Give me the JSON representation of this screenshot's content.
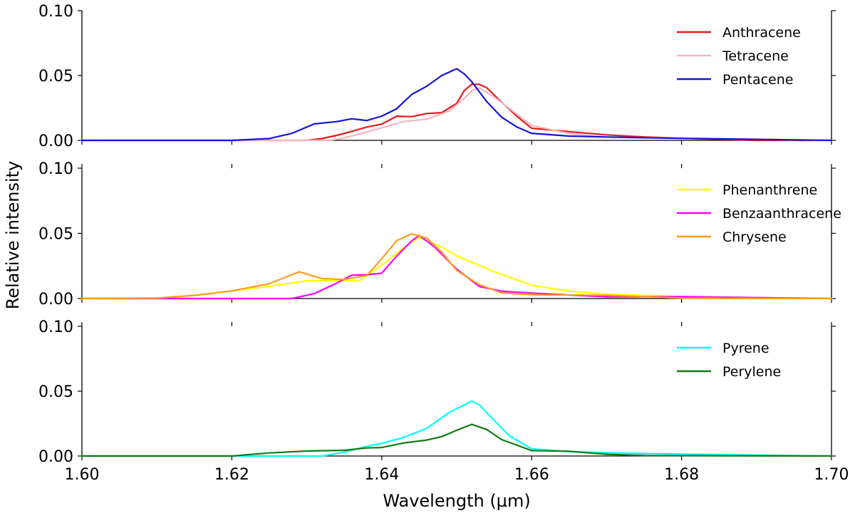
{
  "chart_data": {
    "type": "line",
    "xlabel": "Wavelength (μm)",
    "ylabel": "Relative intensity",
    "xlim": [
      1.6,
      1.7
    ],
    "x_ticks": [
      "1.60",
      "1.62",
      "1.64",
      "1.66",
      "1.68",
      "1.70"
    ],
    "x_tick_values": [
      1.6,
      1.62,
      1.64,
      1.66,
      1.68,
      1.7
    ],
    "panels": [
      {
        "ylim": [
          0,
          0.1
        ],
        "y_ticks": [
          "0.00",
          "0.05",
          "0.10"
        ],
        "y_tick_values": [
          0,
          0.05,
          0.1
        ],
        "legend_position": "top-right",
        "series": [
          {
            "name": "Anthracene",
            "color": "#e41a1c",
            "x": [
              1.6,
              1.63,
              1.632,
              1.634,
              1.636,
              1.638,
              1.64,
              1.642,
              1.644,
              1.646,
              1.648,
              1.65,
              1.651,
              1.652,
              1.653,
              1.654,
              1.656,
              1.658,
              1.66,
              1.665,
              1.67,
              1.675,
              1.68,
              1.69,
              1.7
            ],
            "y": [
              0,
              0,
              0.001,
              0.004,
              0.007,
              0.01,
              0.013,
              0.018,
              0.019,
              0.02,
              0.022,
              0.028,
              0.038,
              0.044,
              0.043,
              0.04,
              0.03,
              0.018,
              0.01,
              0.007,
              0.004,
              0.002,
              0.001,
              0.0005,
              0
            ]
          },
          {
            "name": "Tetracene",
            "color": "#f4b6c2",
            "x": [
              1.6,
              1.633,
              1.635,
              1.638,
              1.64,
              1.643,
              1.646,
              1.649,
              1.651,
              1.652,
              1.653,
              1.655,
              1.658,
              1.66,
              1.665,
              1.67,
              1.68,
              1.7
            ],
            "y": [
              0,
              0,
              0.002,
              0.006,
              0.01,
              0.014,
              0.017,
              0.022,
              0.033,
              0.038,
              0.04,
              0.034,
              0.02,
              0.012,
              0.006,
              0.003,
              0.001,
              0
            ]
          },
          {
            "name": "Pentacene",
            "color": "#1515d6",
            "x": [
              1.6,
              1.62,
              1.625,
              1.628,
              1.631,
              1.634,
              1.636,
              1.638,
              1.64,
              1.642,
              1.644,
              1.646,
              1.648,
              1.65,
              1.651,
              1.652,
              1.654,
              1.656,
              1.658,
              1.66,
              1.665,
              1.67,
              1.675,
              1.68,
              1.7
            ],
            "y": [
              0,
              0,
              0.001,
              0.006,
              0.012,
              0.015,
              0.016,
              0.016,
              0.018,
              0.025,
              0.035,
              0.042,
              0.05,
              0.055,
              0.052,
              0.045,
              0.03,
              0.018,
              0.01,
              0.006,
              0.004,
              0.003,
              0.002,
              0.001,
              0
            ]
          }
        ]
      },
      {
        "ylim": [
          0,
          0.1
        ],
        "y_ticks": [
          "0.00",
          "0.05",
          "0.10"
        ],
        "y_tick_values": [
          0,
          0.05,
          0.1
        ],
        "legend_position": "top-right",
        "series": [
          {
            "name": "Phenanthrene",
            "color": "#ffff00",
            "x": [
              1.6,
              1.61,
              1.615,
              1.62,
              1.625,
              1.63,
              1.635,
              1.637,
              1.64,
              1.643,
              1.645,
              1.648,
              1.65,
              1.655,
              1.66,
              1.665,
              1.67,
              1.68,
              1.7
            ],
            "y": [
              0,
              0.001,
              0.003,
              0.006,
              0.009,
              0.013,
              0.013,
              0.014,
              0.025,
              0.04,
              0.046,
              0.04,
              0.032,
              0.02,
              0.01,
              0.006,
              0.004,
              0.001,
              0
            ]
          },
          {
            "name": "Benzaanthracene",
            "color": "#ff00ff",
            "x": [
              1.6,
              1.628,
              1.631,
              1.634,
              1.636,
              1.638,
              1.64,
              1.642,
              1.644,
              1.645,
              1.647,
              1.65,
              1.653,
              1.656,
              1.66,
              1.665,
              1.67,
              1.68,
              1.7
            ],
            "y": [
              0,
              0,
              0.004,
              0.012,
              0.018,
              0.018,
              0.02,
              0.032,
              0.045,
              0.048,
              0.04,
              0.022,
              0.01,
              0.005,
              0.004,
              0.003,
              0.002,
              0.001,
              0
            ]
          },
          {
            "name": "Chrysene",
            "color": "#ff9b1a",
            "x": [
              1.6,
              1.61,
              1.615,
              1.62,
              1.625,
              1.629,
              1.632,
              1.635,
              1.638,
              1.64,
              1.642,
              1.644,
              1.646,
              1.648,
              1.65,
              1.653,
              1.656,
              1.66,
              1.67,
              1.68,
              1.7
            ],
            "y": [
              0,
              0.001,
              0.003,
              0.006,
              0.011,
              0.02,
              0.016,
              0.014,
              0.018,
              0.03,
              0.045,
              0.049,
              0.047,
              0.035,
              0.022,
              0.01,
              0.005,
              0.003,
              0.002,
              0.001,
              0
            ]
          }
        ]
      },
      {
        "ylim": [
          0,
          0.1
        ],
        "y_ticks": [
          "0.00",
          "0.05",
          "0.10"
        ],
        "y_tick_values": [
          0,
          0.05,
          0.1
        ],
        "legend_position": "top-right",
        "series": [
          {
            "name": "Pyrene",
            "color": "#00ffff",
            "x": [
              1.6,
              1.632,
              1.635,
              1.638,
              1.64,
              1.643,
              1.646,
              1.649,
              1.651,
              1.652,
              1.653,
              1.655,
              1.657,
              1.66,
              1.665,
              1.67,
              1.675,
              1.68,
              1.7
            ],
            "y": [
              0,
              0,
              0.003,
              0.007,
              0.01,
              0.014,
              0.022,
              0.033,
              0.04,
              0.042,
              0.039,
              0.028,
              0.015,
              0.006,
              0.004,
              0.003,
              0.002,
              0.001,
              0
            ]
          },
          {
            "name": "Perylene",
            "color": "#137a13",
            "x": [
              1.6,
              1.62,
              1.625,
              1.63,
              1.635,
              1.638,
              1.64,
              1.643,
              1.646,
              1.648,
              1.65,
              1.652,
              1.654,
              1.656,
              1.66,
              1.665,
              1.67,
              1.675,
              1.7
            ],
            "y": [
              0,
              0,
              0.002,
              0.004,
              0.005,
              0.006,
              0.007,
              0.01,
              0.012,
              0.015,
              0.02,
              0.024,
              0.021,
              0.012,
              0.004,
              0.004,
              0.002,
              0.001,
              0
            ]
          }
        ]
      }
    ]
  }
}
